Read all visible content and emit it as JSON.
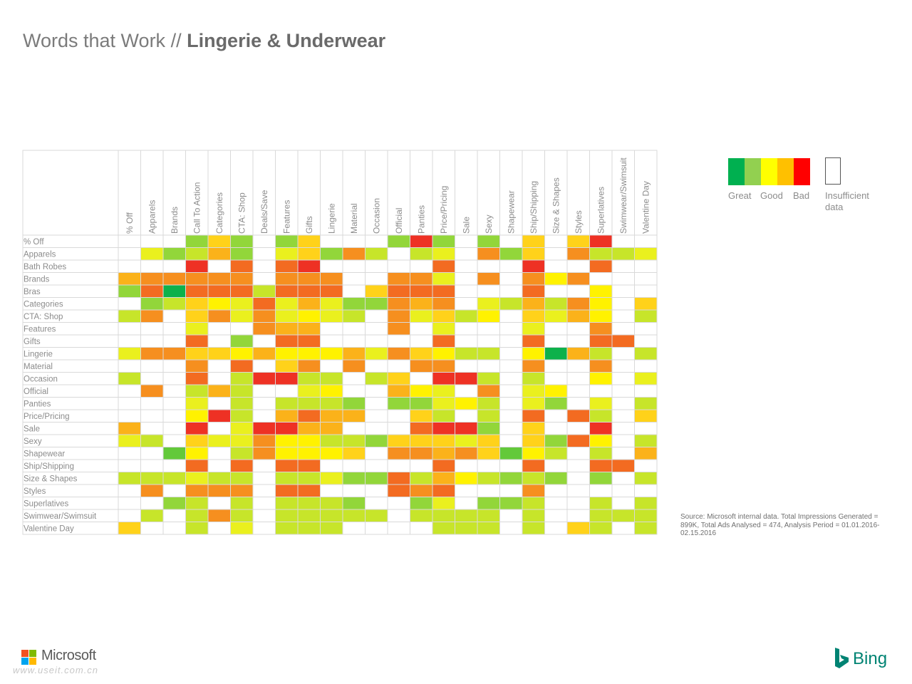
{
  "header": {
    "title_light": "Words that Work // ",
    "title_bold": "Lingerie & Underwear"
  },
  "legend": {
    "colors": [
      "#00b050",
      "#92d050",
      "#ffff00",
      "#ffc000",
      "#ff0000"
    ],
    "labels": {
      "great": "Great",
      "good": "Good",
      "bad": "Bad",
      "insufficient": "Insufficient data"
    }
  },
  "source_note": "Source: Microsoft internal data. Total Impressions Generated = 899K, Total Ads Analysed = 474, Analysis Period = 01.01.2016-02.15.2016",
  "footer": {
    "microsoft": "Microsoft",
    "watermark": "www.useit.com.cn",
    "bing": "Bing"
  },
  "palette": {
    "1": "#0db14b",
    "2": "#63c93a",
    "3": "#92d63a",
    "4": "#c7e52a",
    "5": "#eaf01e",
    "6": "#fff200",
    "7": "#ffd21a",
    "8": "#fbb21a",
    "9": "#f68f1f",
    "10": "#f36b21",
    "11": "#ee3124"
  },
  "chart_data": {
    "type": "heatmap",
    "scale_note": "1 = Great ... 11 = Bad, 0 = Insufficient data",
    "columns": [
      "% Off",
      "Apparels",
      "Brands",
      "Call To Action",
      "Categories",
      "CTA: Shop",
      "Deals/Save",
      "Features",
      "Gifts",
      "Lingerie",
      "Material",
      "Occasion",
      "Official",
      "Panties",
      "Price/Pricing",
      "Sale",
      "Sexy",
      "Shapewear",
      "Ship/Shipping",
      "Size & Shapes",
      "Styles",
      "Superlatives",
      "Swimwear/Swimsuit",
      "Valentine Day"
    ],
    "rows": [
      "% Off",
      "Apparels",
      "Bath Robes",
      "Brands",
      "Bras",
      "Categories",
      "CTA: Shop",
      "Features",
      "Gifts",
      "Lingerie",
      "Material",
      "Occasion",
      "Official",
      "Panties",
      "Price/Pricing",
      "Sale",
      "Sexy",
      "Shapewear",
      "Ship/Shipping",
      "Size & Shapes",
      "Styles",
      "Superlatives",
      "Swimwear/Swimsuit",
      "Valentine Day"
    ],
    "values": [
      [
        0,
        0,
        0,
        3,
        7,
        3,
        0,
        3,
        7,
        0,
        0,
        0,
        3,
        11,
        3,
        0,
        3,
        0,
        7,
        0,
        7,
        11,
        0,
        0
      ],
      [
        0,
        5,
        3,
        4,
        8,
        3,
        0,
        5,
        7,
        3,
        9,
        4,
        0,
        4,
        5,
        0,
        9,
        3,
        7,
        0,
        9,
        4,
        4,
        5
      ],
      [
        0,
        0,
        0,
        11,
        0,
        10,
        0,
        10,
        11,
        0,
        0,
        0,
        0,
        0,
        10,
        0,
        0,
        0,
        11,
        0,
        0,
        10,
        0,
        0
      ],
      [
        8,
        9,
        9,
        9,
        9,
        9,
        0,
        9,
        9,
        9,
        0,
        0,
        9,
        9,
        5,
        0,
        9,
        0,
        9,
        6,
        9,
        0,
        0,
        0
      ],
      [
        3,
        10,
        1,
        10,
        10,
        10,
        4,
        10,
        10,
        10,
        0,
        7,
        10,
        10,
        10,
        0,
        0,
        0,
        10,
        0,
        0,
        6,
        0,
        0
      ],
      [
        0,
        3,
        4,
        7,
        6,
        5,
        10,
        5,
        8,
        5,
        3,
        3,
        9,
        8,
        9,
        0,
        5,
        4,
        8,
        4,
        9,
        6,
        0,
        7
      ],
      [
        4,
        9,
        0,
        7,
        9,
        5,
        9,
        5,
        6,
        5,
        4,
        0,
        9,
        5,
        7,
        4,
        6,
        0,
        7,
        5,
        8,
        6,
        0,
        4
      ],
      [
        0,
        0,
        0,
        5,
        0,
        0,
        9,
        8,
        8,
        0,
        0,
        0,
        9,
        0,
        5,
        0,
        0,
        0,
        5,
        0,
        0,
        9,
        0,
        0
      ],
      [
        0,
        0,
        0,
        10,
        0,
        3,
        0,
        10,
        10,
        0,
        0,
        0,
        0,
        0,
        10,
        0,
        0,
        0,
        10,
        0,
        0,
        10,
        10,
        0
      ],
      [
        5,
        9,
        9,
        7,
        7,
        6,
        8,
        6,
        6,
        6,
        8,
        5,
        9,
        7,
        6,
        4,
        4,
        0,
        6,
        1,
        8,
        4,
        0,
        4
      ],
      [
        0,
        0,
        0,
        9,
        0,
        10,
        0,
        7,
        9,
        0,
        9,
        0,
        0,
        9,
        9,
        0,
        0,
        0,
        9,
        0,
        0,
        9,
        0,
        0
      ],
      [
        4,
        0,
        0,
        10,
        0,
        4,
        11,
        11,
        4,
        4,
        0,
        4,
        7,
        0,
        11,
        11,
        4,
        0,
        4,
        0,
        0,
        6,
        0,
        5
      ],
      [
        0,
        9,
        0,
        4,
        8,
        4,
        0,
        0,
        5,
        6,
        0,
        0,
        8,
        6,
        5,
        0,
        9,
        0,
        5,
        6,
        0,
        0,
        0,
        0
      ],
      [
        0,
        0,
        0,
        5,
        0,
        4,
        0,
        4,
        4,
        4,
        3,
        0,
        3,
        3,
        5,
        6,
        4,
        0,
        5,
        3,
        0,
        5,
        0,
        4
      ],
      [
        0,
        0,
        0,
        6,
        11,
        4,
        0,
        8,
        10,
        8,
        8,
        0,
        0,
        7,
        4,
        0,
        4,
        0,
        10,
        0,
        10,
        4,
        0,
        7
      ],
      [
        8,
        0,
        0,
        11,
        0,
        5,
        11,
        11,
        8,
        8,
        0,
        0,
        0,
        10,
        11,
        11,
        3,
        0,
        7,
        0,
        0,
        11,
        0,
        0
      ],
      [
        5,
        4,
        0,
        7,
        5,
        5,
        9,
        6,
        6,
        4,
        4,
        3,
        7,
        7,
        7,
        5,
        7,
        0,
        7,
        3,
        10,
        6,
        0,
        4
      ],
      [
        0,
        0,
        2,
        6,
        0,
        4,
        9,
        6,
        6,
        6,
        7,
        0,
        9,
        9,
        8,
        9,
        7,
        2,
        6,
        4,
        0,
        4,
        0,
        8
      ],
      [
        0,
        0,
        0,
        10,
        0,
        10,
        0,
        10,
        10,
        0,
        0,
        0,
        0,
        0,
        10,
        0,
        0,
        0,
        10,
        0,
        0,
        10,
        10,
        0
      ],
      [
        4,
        4,
        4,
        5,
        4,
        4,
        0,
        4,
        4,
        5,
        3,
        3,
        10,
        4,
        8,
        6,
        4,
        3,
        4,
        3,
        0,
        3,
        0,
        4
      ],
      [
        0,
        9,
        0,
        9,
        9,
        9,
        0,
        10,
        10,
        0,
        0,
        0,
        10,
        9,
        10,
        0,
        0,
        0,
        9,
        0,
        0,
        0,
        0,
        0
      ],
      [
        0,
        0,
        3,
        4,
        0,
        4,
        0,
        4,
        4,
        4,
        3,
        0,
        0,
        3,
        5,
        0,
        3,
        3,
        4,
        0,
        0,
        4,
        0,
        4
      ],
      [
        0,
        4,
        0,
        4,
        9,
        4,
        0,
        4,
        4,
        4,
        4,
        4,
        0,
        4,
        4,
        4,
        4,
        0,
        4,
        0,
        0,
        4,
        4,
        4
      ],
      [
        7,
        0,
        0,
        4,
        0,
        5,
        0,
        4,
        4,
        4,
        0,
        0,
        0,
        0,
        4,
        4,
        4,
        0,
        4,
        0,
        7,
        4,
        0,
        4
      ]
    ]
  }
}
